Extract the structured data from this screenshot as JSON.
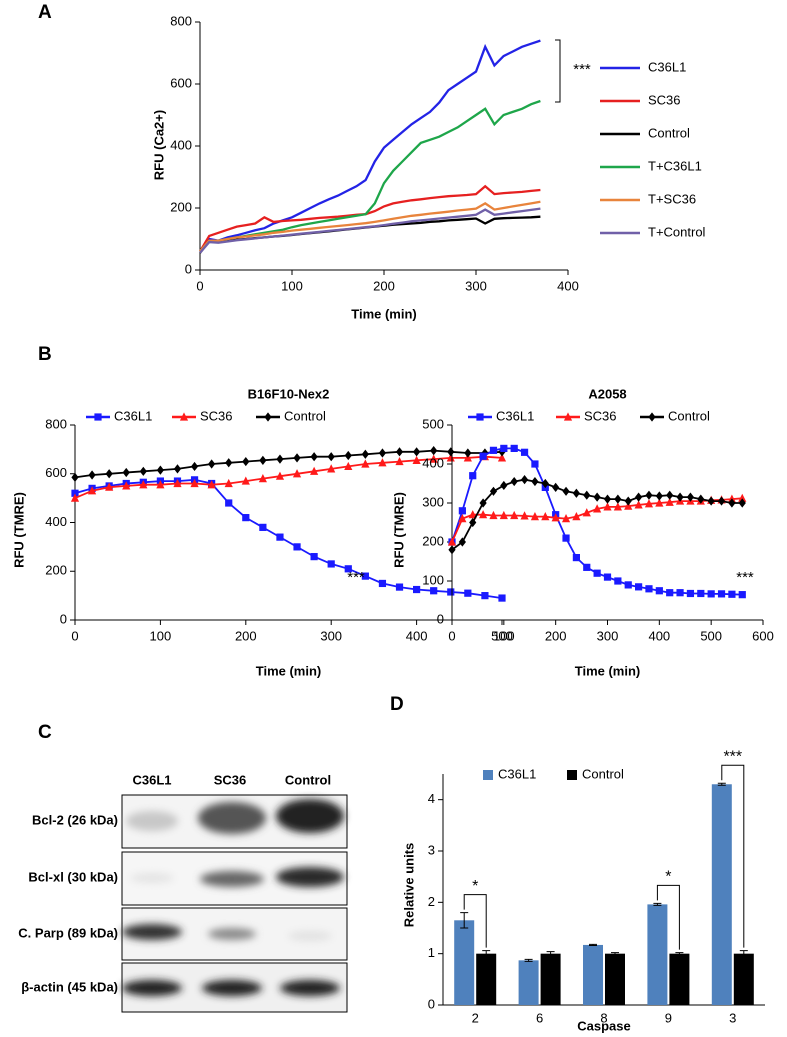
{
  "panels": [
    "A",
    "B",
    "C",
    "D"
  ],
  "chart_data": [
    {
      "type": "line",
      "legend": "right",
      "ylabel": "RFU  (Ca2+)",
      "xlabel": "Time (min)",
      "annotation": "***",
      "xlim": [
        0,
        400
      ],
      "xticks": [
        0,
        100,
        200,
        300,
        400
      ],
      "ylim": [
        0,
        800
      ],
      "yticks": [
        0,
        200,
        400,
        600,
        800
      ],
      "x": [
        0,
        10,
        20,
        30,
        40,
        50,
        60,
        70,
        80,
        90,
        100,
        110,
        120,
        130,
        140,
        150,
        160,
        170,
        180,
        190,
        200,
        210,
        220,
        230,
        240,
        250,
        260,
        270,
        280,
        290,
        300,
        310,
        320,
        330,
        340,
        350,
        360,
        370
      ],
      "series": [
        {
          "name": "C36L1",
          "color": "#2323e6",
          "values": [
            60,
            100,
            95,
            105,
            112,
            120,
            128,
            135,
            150,
            160,
            170,
            185,
            200,
            215,
            228,
            240,
            255,
            270,
            290,
            350,
            395,
            420,
            445,
            470,
            490,
            510,
            540,
            580,
            600,
            620,
            640,
            720,
            660,
            690,
            705,
            720,
            730,
            740
          ]
        },
        {
          "name": "SC36",
          "color": "#e62020",
          "values": [
            60,
            110,
            120,
            130,
            140,
            145,
            150,
            170,
            155,
            158,
            160,
            162,
            165,
            168,
            170,
            172,
            175,
            178,
            180,
            190,
            205,
            215,
            220,
            225,
            228,
            232,
            235,
            238,
            240,
            242,
            245,
            270,
            245,
            248,
            250,
            252,
            255,
            258
          ]
        },
        {
          "name": "Control",
          "color": "#000000",
          "values": [
            55,
            95,
            90,
            95,
            98,
            100,
            103,
            105,
            108,
            110,
            113,
            116,
            119,
            122,
            125,
            128,
            131,
            134,
            137,
            140,
            143,
            146,
            148,
            150,
            152,
            155,
            157,
            160,
            162,
            164,
            166,
            150,
            165,
            167,
            168,
            169,
            170,
            172
          ]
        },
        {
          "name": "T+C36L1",
          "color": "#1ea64a",
          "values": [
            60,
            95,
            95,
            100,
            105,
            110,
            115,
            120,
            125,
            130,
            138,
            145,
            150,
            155,
            160,
            165,
            170,
            175,
            180,
            215,
            280,
            320,
            350,
            380,
            410,
            420,
            430,
            445,
            460,
            480,
            500,
            520,
            470,
            500,
            510,
            520,
            535,
            545
          ]
        },
        {
          "name": "T+SC36",
          "color": "#e8843c",
          "values": [
            60,
            95,
            95,
            100,
            105,
            108,
            112,
            115,
            120,
            123,
            127,
            130,
            133,
            136,
            139,
            142,
            145,
            148,
            151,
            155,
            160,
            165,
            170,
            175,
            178,
            182,
            185,
            188,
            192,
            195,
            198,
            215,
            195,
            200,
            205,
            210,
            215,
            220
          ]
        },
        {
          "name": "T+Control",
          "color": "#7060a8",
          "values": [
            55,
            90,
            88,
            92,
            96,
            99,
            102,
            105,
            108,
            111,
            114,
            117,
            120,
            123,
            126,
            129,
            132,
            135,
            138,
            141,
            145,
            149,
            153,
            157,
            160,
            163,
            166,
            169,
            172,
            175,
            178,
            195,
            178,
            182,
            186,
            190,
            194,
            198
          ]
        }
      ]
    },
    {
      "type": "line",
      "legend": "top",
      "title": "B16F10-Nex2",
      "ylabel": "RFU (TMRE)",
      "xlabel": "Time (min)",
      "annotation": "***",
      "xlim": [
        0,
        500
      ],
      "xticks": [
        0,
        100,
        200,
        300,
        400,
        500
      ],
      "ylim": [
        0,
        800
      ],
      "yticks": [
        0,
        200,
        400,
        600,
        800
      ],
      "x": [
        0,
        20,
        40,
        60,
        80,
        100,
        120,
        140,
        160,
        180,
        200,
        220,
        240,
        260,
        280,
        300,
        320,
        340,
        360,
        380,
        400,
        420,
        440,
        460,
        480,
        500
      ],
      "series": [
        {
          "name": "C36L1",
          "color": "#1a1aff",
          "marker": "square",
          "values": [
            520,
            540,
            550,
            560,
            565,
            570,
            570,
            575,
            560,
            480,
            420,
            380,
            340,
            300,
            260,
            230,
            210,
            180,
            150,
            135,
            125,
            120,
            115,
            110,
            100,
            90
          ]
        },
        {
          "name": "SC36",
          "color": "#ff1a1a",
          "marker": "triangle",
          "values": [
            500,
            530,
            545,
            550,
            555,
            555,
            560,
            560,
            555,
            560,
            570,
            580,
            590,
            600,
            610,
            620,
            630,
            640,
            645,
            650,
            655,
            660,
            665,
            665,
            670,
            665
          ]
        },
        {
          "name": "Control",
          "color": "#000000",
          "marker": "diamond",
          "values": [
            585,
            595,
            600,
            605,
            610,
            615,
            620,
            630,
            640,
            645,
            650,
            655,
            660,
            665,
            670,
            670,
            675,
            680,
            685,
            690,
            690,
            695,
            690,
            685,
            685,
            690
          ]
        }
      ]
    },
    {
      "type": "line",
      "legend": "top",
      "title": "A2058",
      "ylabel": "RFU (TMRE)",
      "xlabel": "Time (min)",
      "annotation": "***",
      "xlim": [
        0,
        600
      ],
      "xticks": [
        0,
        100,
        200,
        300,
        400,
        500,
        600
      ],
      "ylim": [
        0,
        500
      ],
      "yticks": [
        0,
        100,
        200,
        300,
        400,
        500
      ],
      "x": [
        0,
        20,
        40,
        60,
        80,
        100,
        120,
        140,
        160,
        180,
        200,
        220,
        240,
        260,
        280,
        300,
        320,
        340,
        360,
        380,
        400,
        420,
        440,
        460,
        480,
        500,
        520,
        540,
        560
      ],
      "series": [
        {
          "name": "C36L1",
          "color": "#1a1aff",
          "marker": "square",
          "values": [
            200,
            280,
            370,
            420,
            435,
            440,
            440,
            430,
            400,
            340,
            270,
            210,
            160,
            135,
            120,
            110,
            100,
            90,
            85,
            80,
            75,
            70,
            70,
            68,
            68,
            67,
            67,
            66,
            65
          ]
        },
        {
          "name": "SC36",
          "color": "#ff1a1a",
          "marker": "triangle",
          "values": [
            200,
            260,
            270,
            270,
            268,
            268,
            268,
            267,
            265,
            265,
            262,
            260,
            265,
            275,
            285,
            290,
            290,
            292,
            295,
            298,
            300,
            302,
            305,
            305,
            305,
            307,
            308,
            310,
            312
          ]
        },
        {
          "name": "Control",
          "color": "#000000",
          "marker": "diamond",
          "values": [
            180,
            200,
            250,
            300,
            330,
            345,
            355,
            360,
            355,
            350,
            340,
            330,
            325,
            320,
            315,
            310,
            310,
            305,
            315,
            320,
            318,
            320,
            315,
            315,
            310,
            305,
            305,
            300,
            300
          ]
        }
      ]
    },
    {
      "type": "bar",
      "legend": "top",
      "ylabel": "Relative units",
      "xlabel": "Caspase",
      "categories": [
        "2",
        "6",
        "8",
        "9",
        "3"
      ],
      "ylim": [
        0,
        4.5
      ],
      "yticks": [
        0,
        1,
        2,
        3,
        4
      ],
      "significance": [
        "*",
        null,
        null,
        "*",
        "***"
      ],
      "series": [
        {
          "name": "C36L1",
          "color": "#4f81bd",
          "values": [
            1.65,
            0.87,
            1.17,
            1.96,
            4.3
          ],
          "errors": [
            0.15,
            0.02,
            0.01,
            0.02,
            0.02
          ]
        },
        {
          "name": "Control",
          "color": "#000000",
          "values": [
            1.0,
            1.0,
            1.0,
            1.0,
            1.0
          ],
          "errors": [
            0.06,
            0.04,
            0.02,
            0.02,
            0.06
          ]
        }
      ]
    }
  ],
  "blot": {
    "columns": [
      "C36L1",
      "SC36",
      "Control"
    ],
    "rows": [
      "Bcl-2 (26 kDa)",
      "Bcl-xl (30 kDa)",
      "C. Parp (89 kDa)",
      "β-actin (45 kDa)"
    ]
  }
}
